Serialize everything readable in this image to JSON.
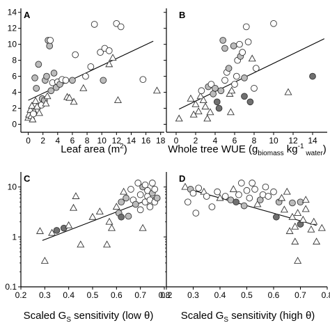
{
  "chart_data": [
    {
      "type": "scatter",
      "panel_label": "A",
      "xlabel": "Leaf area (m",
      "xlabel_sup": "2",
      "xlabel_tail": ")",
      "xlim": [
        -1,
        18.5
      ],
      "ylim": [
        -1,
        14.5
      ],
      "y_scale": "linear",
      "x_ticks": [
        0,
        2,
        4,
        6,
        8,
        10,
        12,
        14,
        16,
        18
      ],
      "x_tick_labels": [
        "0",
        "2",
        "4",
        "6",
        "8",
        "10",
        "12",
        "14",
        "16",
        "18"
      ],
      "y_ticks": [
        0,
        2,
        4,
        6,
        8,
        10,
        12,
        14
      ],
      "y_tick_labels": [
        "0",
        "2",
        "4",
        "6",
        "8",
        "10",
        "12",
        "14"
      ],
      "fit_line": [
        [
          0,
          3.0
        ],
        [
          17,
          10.4
        ]
      ],
      "points": [
        {
          "x": 0.0,
          "y": 0.8,
          "m": "tri"
        },
        {
          "x": 0.1,
          "y": 1.2,
          "m": "tri"
        },
        {
          "x": 0.3,
          "y": 1.8,
          "m": "tri"
        },
        {
          "x": 0.4,
          "y": 1.0,
          "m": "tri"
        },
        {
          "x": 0.5,
          "y": 2.3,
          "m": "tri"
        },
        {
          "x": 0.6,
          "y": 0.6,
          "m": "tri"
        },
        {
          "x": 0.8,
          "y": 1.6,
          "m": "tri"
        },
        {
          "x": 1.0,
          "y": 2.9,
          "m": "tri"
        },
        {
          "x": 1.2,
          "y": 2.2,
          "m": "tri"
        },
        {
          "x": 1.5,
          "y": 1.4,
          "m": "tri"
        },
        {
          "x": 0.7,
          "y": 1.3,
          "m": "open"
        },
        {
          "x": 1.8,
          "y": 2.4,
          "m": "open"
        },
        {
          "x": 1.1,
          "y": 4.5,
          "m": "filled"
        },
        {
          "x": 0.9,
          "y": 5.8,
          "m": "filled"
        },
        {
          "x": 1.4,
          "y": 7.5,
          "m": "filled"
        },
        {
          "x": 1.9,
          "y": 3.2,
          "m": "filled"
        },
        {
          "x": 2.2,
          "y": 3.0,
          "m": "filled"
        },
        {
          "x": 2.4,
          "y": 2.6,
          "m": "tri"
        },
        {
          "x": 2.6,
          "y": 3.5,
          "m": "tri"
        },
        {
          "x": 2.3,
          "y": 5.5,
          "m": "filled"
        },
        {
          "x": 2.5,
          "y": 6.0,
          "m": "filled"
        },
        {
          "x": 2.7,
          "y": 10.5,
          "m": "filled"
        },
        {
          "x": 2.9,
          "y": 9.8,
          "m": "filled"
        },
        {
          "x": 3.0,
          "y": 10.5,
          "m": "open"
        },
        {
          "x": 3.1,
          "y": 4.2,
          "m": "filled"
        },
        {
          "x": 3.3,
          "y": 5.2,
          "m": "open"
        },
        {
          "x": 3.5,
          "y": 6.4,
          "m": "filled"
        },
        {
          "x": 3.8,
          "y": 4.6,
          "m": "filled"
        },
        {
          "x": 4.0,
          "y": 5.3,
          "m": "open"
        },
        {
          "x": 4.3,
          "y": 5.0,
          "m": "filled"
        },
        {
          "x": 4.6,
          "y": 5.6,
          "m": "open"
        },
        {
          "x": 5.1,
          "y": 5.5,
          "m": "open"
        },
        {
          "x": 5.3,
          "y": 3.4,
          "m": "tri"
        },
        {
          "x": 5.6,
          "y": 3.3,
          "m": "tri"
        },
        {
          "x": 6.2,
          "y": 2.8,
          "m": "tri"
        },
        {
          "x": 6.0,
          "y": 5.5,
          "m": "filled"
        },
        {
          "x": 6.4,
          "y": 8.7,
          "m": "open"
        },
        {
          "x": 7.5,
          "y": 4.5,
          "m": "tri"
        },
        {
          "x": 7.8,
          "y": 6.0,
          "m": "open"
        },
        {
          "x": 8.5,
          "y": 7.2,
          "m": "open"
        },
        {
          "x": 9.0,
          "y": 12.5,
          "m": "open"
        },
        {
          "x": 9.8,
          "y": 9.0,
          "m": "open"
        },
        {
          "x": 10.2,
          "y": 5.5,
          "m": "filled"
        },
        {
          "x": 10.4,
          "y": 9.5,
          "m": "open"
        },
        {
          "x": 11.0,
          "y": 9.2,
          "m": "open"
        },
        {
          "x": 11.0,
          "y": 7.5,
          "m": "tri"
        },
        {
          "x": 11.5,
          "y": 8.3,
          "m": "tri"
        },
        {
          "x": 12.0,
          "y": 12.6,
          "m": "open"
        },
        {
          "x": 12.6,
          "y": 12.2,
          "m": "open"
        },
        {
          "x": 12.2,
          "y": 3.0,
          "m": "tri"
        },
        {
          "x": 15.6,
          "y": 5.6,
          "m": "open"
        },
        {
          "x": 17.5,
          "y": 4.2,
          "m": "tri"
        }
      ]
    },
    {
      "type": "scatter",
      "panel_label": "B",
      "xlabel": "Whole tree WUE (g",
      "xlabel_sub": "biomass",
      "xlabel_mid": " kg",
      "xlabel_sup": "-1",
      "xlabel_sub2": " water",
      "xlabel_tail": ")",
      "xlim": [
        -1,
        15.5
      ],
      "ylim": [
        -1,
        14.5
      ],
      "y_scale": "linear",
      "x_ticks": [
        0,
        2,
        4,
        6,
        8,
        10,
        12,
        14
      ],
      "x_tick_labels": [
        "0",
        "2",
        "4",
        "6",
        "8",
        "10",
        "12",
        "14"
      ],
      "y_ticks": [
        0,
        2,
        4,
        6,
        8,
        10,
        12,
        14
      ],
      "y_tick_labels": [],
      "fit_line": [
        [
          0.3,
          1.9
        ],
        [
          15.2,
          10.7
        ]
      ],
      "points": [
        {
          "x": 0.3,
          "y": 0.7,
          "m": "tri"
        },
        {
          "x": 1.5,
          "y": 3.2,
          "m": "tri"
        },
        {
          "x": 1.8,
          "y": 1.2,
          "m": "tri"
        },
        {
          "x": 2.0,
          "y": 2.5,
          "m": "tri"
        },
        {
          "x": 2.3,
          "y": 1.6,
          "m": "tri"
        },
        {
          "x": 2.5,
          "y": 3.5,
          "m": "tri"
        },
        {
          "x": 2.8,
          "y": 3.0,
          "m": "tri"
        },
        {
          "x": 3.0,
          "y": 2.2,
          "m": "tri"
        },
        {
          "x": 3.2,
          "y": 0.7,
          "m": "tri"
        },
        {
          "x": 3.5,
          "y": 1.5,
          "m": "tri"
        },
        {
          "x": 2.6,
          "y": 4.2,
          "m": "open"
        },
        {
          "x": 3.3,
          "y": 4.7,
          "m": "filled"
        },
        {
          "x": 3.6,
          "y": 5.0,
          "m": "open"
        },
        {
          "x": 3.8,
          "y": 3.8,
          "m": "filled"
        },
        {
          "x": 4.0,
          "y": 4.5,
          "m": "filled"
        },
        {
          "x": 4.2,
          "y": 2.8,
          "m": "dark"
        },
        {
          "x": 4.4,
          "y": 2.0,
          "m": "dark"
        },
        {
          "x": 4.6,
          "y": 4.2,
          "m": "filled"
        },
        {
          "x": 4.8,
          "y": 10.5,
          "m": "filled"
        },
        {
          "x": 5.0,
          "y": 9.5,
          "m": "filled"
        },
        {
          "x": 5.0,
          "y": 5.5,
          "m": "open"
        },
        {
          "x": 5.2,
          "y": 6.5,
          "m": "open"
        },
        {
          "x": 5.4,
          "y": 7.0,
          "m": "filled"
        },
        {
          "x": 5.5,
          "y": 3.8,
          "m": "tri"
        },
        {
          "x": 5.6,
          "y": 1.5,
          "m": "tri"
        },
        {
          "x": 5.7,
          "y": 4.2,
          "m": "tri"
        },
        {
          "x": 5.9,
          "y": 9.8,
          "m": "filled"
        },
        {
          "x": 6.0,
          "y": 5.0,
          "m": "open"
        },
        {
          "x": 6.2,
          "y": 6.0,
          "m": "open"
        },
        {
          "x": 6.3,
          "y": 8.0,
          "m": "open"
        },
        {
          "x": 6.5,
          "y": 10.0,
          "m": "open"
        },
        {
          "x": 6.6,
          "y": 8.5,
          "m": "filled"
        },
        {
          "x": 6.8,
          "y": 9.0,
          "m": "open"
        },
        {
          "x": 7.0,
          "y": 5.8,
          "m": "filled"
        },
        {
          "x": 7.0,
          "y": 3.5,
          "m": "dark"
        },
        {
          "x": 7.2,
          "y": 12.2,
          "m": "open"
        },
        {
          "x": 7.4,
          "y": 10.3,
          "m": "open"
        },
        {
          "x": 7.6,
          "y": 2.8,
          "m": "dark"
        },
        {
          "x": 7.8,
          "y": 8.2,
          "m": "tri"
        },
        {
          "x": 8.0,
          "y": 4.5,
          "m": "open"
        },
        {
          "x": 8.2,
          "y": 7.0,
          "m": "open"
        },
        {
          "x": 10.0,
          "y": 12.6,
          "m": "open"
        },
        {
          "x": 11.5,
          "y": 4.0,
          "m": "tri"
        },
        {
          "x": 14.0,
          "y": 6.0,
          "m": "dark"
        }
      ]
    },
    {
      "type": "scatter",
      "panel_label": "C",
      "xlabel": "Scaled G",
      "xlabel_sub": "S",
      "xlabel_tail": " sensitivity (low θ)",
      "xlim": [
        0.2,
        0.8
      ],
      "ylim": [
        0.1,
        20
      ],
      "y_scale": "log",
      "x_ticks": [
        0.2,
        0.3,
        0.4,
        0.5,
        0.6,
        0.7,
        0.8
      ],
      "x_tick_labels": [
        "0.2",
        "0.3",
        "0.4",
        "0.5",
        "0.6",
        "0.7",
        "0.8"
      ],
      "y_ticks": [
        0.1,
        1,
        10
      ],
      "y_tick_labels": [
        "0.1",
        "1",
        "10"
      ],
      "fit_line": [
        [
          0.29,
          0.85
        ],
        [
          0.77,
          6.5
        ]
      ],
      "points": [
        {
          "x": 0.28,
          "y": 1.3,
          "m": "tri"
        },
        {
          "x": 0.3,
          "y": 0.33,
          "m": "tri"
        },
        {
          "x": 0.33,
          "y": 1.2,
          "m": "tri"
        },
        {
          "x": 0.35,
          "y": 1.35,
          "m": "dark"
        },
        {
          "x": 0.38,
          "y": 1.5,
          "m": "dark"
        },
        {
          "x": 0.4,
          "y": 1.7,
          "m": "tri"
        },
        {
          "x": 0.42,
          "y": 3.8,
          "m": "tri"
        },
        {
          "x": 0.43,
          "y": 6.5,
          "m": "tri"
        },
        {
          "x": 0.45,
          "y": 0.7,
          "m": "tri"
        },
        {
          "x": 0.5,
          "y": 2.5,
          "m": "tri"
        },
        {
          "x": 0.53,
          "y": 3.2,
          "m": "tri"
        },
        {
          "x": 0.56,
          "y": 0.7,
          "m": "tri"
        },
        {
          "x": 0.57,
          "y": 2.0,
          "m": "tri"
        },
        {
          "x": 0.58,
          "y": 1.5,
          "m": "tri"
        },
        {
          "x": 0.6,
          "y": 4.0,
          "m": "tri"
        },
        {
          "x": 0.61,
          "y": 3.0,
          "m": "filled"
        },
        {
          "x": 0.62,
          "y": 5.0,
          "m": "filled"
        },
        {
          "x": 0.62,
          "y": 2.5,
          "m": "dark"
        },
        {
          "x": 0.63,
          "y": 8.0,
          "m": "tri"
        },
        {
          "x": 0.64,
          "y": 6.0,
          "m": "filled"
        },
        {
          "x": 0.65,
          "y": 2.6,
          "m": "filled"
        },
        {
          "x": 0.66,
          "y": 9.0,
          "m": "open"
        },
        {
          "x": 0.67,
          "y": 5.5,
          "m": "open"
        },
        {
          "x": 0.68,
          "y": 4.5,
          "m": "filled"
        },
        {
          "x": 0.69,
          "y": 12.0,
          "m": "open"
        },
        {
          "x": 0.7,
          "y": 7.0,
          "m": "open"
        },
        {
          "x": 0.7,
          "y": 3.5,
          "m": "open"
        },
        {
          "x": 0.71,
          "y": 10.0,
          "m": "filled"
        },
        {
          "x": 0.71,
          "y": 1.5,
          "m": "tri"
        },
        {
          "x": 0.72,
          "y": 5.0,
          "m": "open"
        },
        {
          "x": 0.72,
          "y": 11.0,
          "m": "open"
        },
        {
          "x": 0.73,
          "y": 6.5,
          "m": "open"
        },
        {
          "x": 0.73,
          "y": 8.5,
          "m": "open"
        },
        {
          "x": 0.74,
          "y": 5.5,
          "m": "open"
        },
        {
          "x": 0.74,
          "y": 4.0,
          "m": "open"
        },
        {
          "x": 0.75,
          "y": 7.5,
          "m": "filled"
        },
        {
          "x": 0.75,
          "y": 12.0,
          "m": "open"
        },
        {
          "x": 0.76,
          "y": 5.0,
          "m": "open"
        },
        {
          "x": 0.76,
          "y": 9.0,
          "m": "open"
        },
        {
          "x": 0.77,
          "y": 6.0,
          "m": "filled"
        }
      ]
    },
    {
      "type": "scatter",
      "panel_label": "D",
      "xlabel": "Scaled G",
      "xlabel_sub": "S",
      "xlabel_tail": " sensitivity (high θ)",
      "xlim": [
        0.2,
        0.8
      ],
      "ylim": [
        0.1,
        20
      ],
      "y_scale": "log",
      "x_ticks": [
        0.2,
        0.3,
        0.4,
        0.5,
        0.6,
        0.7,
        0.8
      ],
      "x_tick_labels": [
        "0.2",
        "0.3",
        "0.4",
        "0.5",
        "0.6",
        "0.7",
        "0.8"
      ],
      "y_ticks": [
        0.1,
        1,
        10
      ],
      "y_tick_labels": [],
      "fit_line": [
        [
          0.27,
          9.5
        ],
        [
          0.76,
          1.7
        ]
      ],
      "points": [
        {
          "x": 0.27,
          "y": 10.0,
          "m": "tri"
        },
        {
          "x": 0.28,
          "y": 5.0,
          "m": "open"
        },
        {
          "x": 0.29,
          "y": 9.0,
          "m": "filled"
        },
        {
          "x": 0.3,
          "y": 7.5,
          "m": "open"
        },
        {
          "x": 0.31,
          "y": 3.0,
          "m": "open"
        },
        {
          "x": 0.32,
          "y": 9.5,
          "m": "open"
        },
        {
          "x": 0.34,
          "y": 8.0,
          "m": "tri"
        },
        {
          "x": 0.35,
          "y": 6.5,
          "m": "open"
        },
        {
          "x": 0.37,
          "y": 4.0,
          "m": "open"
        },
        {
          "x": 0.39,
          "y": 8.0,
          "m": "open"
        },
        {
          "x": 0.4,
          "y": 6.0,
          "m": "tri"
        },
        {
          "x": 0.42,
          "y": 6.5,
          "m": "open"
        },
        {
          "x": 0.44,
          "y": 5.5,
          "m": "filled"
        },
        {
          "x": 0.45,
          "y": 9.0,
          "m": "tri"
        },
        {
          "x": 0.46,
          "y": 5.0,
          "m": "dark"
        },
        {
          "x": 0.47,
          "y": 7.0,
          "m": "open"
        },
        {
          "x": 0.48,
          "y": 12.0,
          "m": "open"
        },
        {
          "x": 0.49,
          "y": 4.2,
          "m": "filled"
        },
        {
          "x": 0.5,
          "y": 8.5,
          "m": "open"
        },
        {
          "x": 0.51,
          "y": 6.0,
          "m": "open"
        },
        {
          "x": 0.52,
          "y": 12.0,
          "m": "open"
        },
        {
          "x": 0.53,
          "y": 9.0,
          "m": "open"
        },
        {
          "x": 0.54,
          "y": 4.5,
          "m": "tri"
        },
        {
          "x": 0.55,
          "y": 5.5,
          "m": "filled"
        },
        {
          "x": 0.56,
          "y": 7.0,
          "m": "open"
        },
        {
          "x": 0.57,
          "y": 10.0,
          "m": "open"
        },
        {
          "x": 0.58,
          "y": 6.5,
          "m": "open"
        },
        {
          "x": 0.6,
          "y": 8.0,
          "m": "open"
        },
        {
          "x": 0.61,
          "y": 2.5,
          "m": "dark"
        },
        {
          "x": 0.62,
          "y": 5.0,
          "m": "filled"
        },
        {
          "x": 0.63,
          "y": 6.0,
          "m": "tri"
        },
        {
          "x": 0.64,
          "y": 3.5,
          "m": "tri"
        },
        {
          "x": 0.65,
          "y": 8.0,
          "m": "tri"
        },
        {
          "x": 0.66,
          "y": 1.3,
          "m": "tri"
        },
        {
          "x": 0.67,
          "y": 4.8,
          "m": "filled"
        },
        {
          "x": 0.67,
          "y": 2.5,
          "m": "tri"
        },
        {
          "x": 0.68,
          "y": 1.6,
          "m": "tri"
        },
        {
          "x": 0.68,
          "y": 0.8,
          "m": "tri"
        },
        {
          "x": 0.69,
          "y": 0.33,
          "m": "tri"
        },
        {
          "x": 0.69,
          "y": 3.0,
          "m": "tri"
        },
        {
          "x": 0.7,
          "y": 1.8,
          "m": "dark"
        },
        {
          "x": 0.7,
          "y": 5.0,
          "m": "filled"
        },
        {
          "x": 0.71,
          "y": 2.2,
          "m": "tri"
        },
        {
          "x": 0.72,
          "y": 3.6,
          "m": "tri"
        },
        {
          "x": 0.72,
          "y": 5.5,
          "m": "tri"
        },
        {
          "x": 0.74,
          "y": 1.4,
          "m": "tri"
        },
        {
          "x": 0.75,
          "y": 2.0,
          "m": "tri"
        },
        {
          "x": 0.76,
          "y": 0.8,
          "m": "tri"
        },
        {
          "x": 0.78,
          "y": 1.5,
          "m": "tri"
        }
      ]
    }
  ],
  "colors": {
    "axis": "#000000",
    "open_fill": "#ffffff",
    "filled_fill": "#bcbcbc",
    "dark_fill": "#707070",
    "tri_fill": "#ffffff",
    "marker_stroke": "#333333"
  }
}
